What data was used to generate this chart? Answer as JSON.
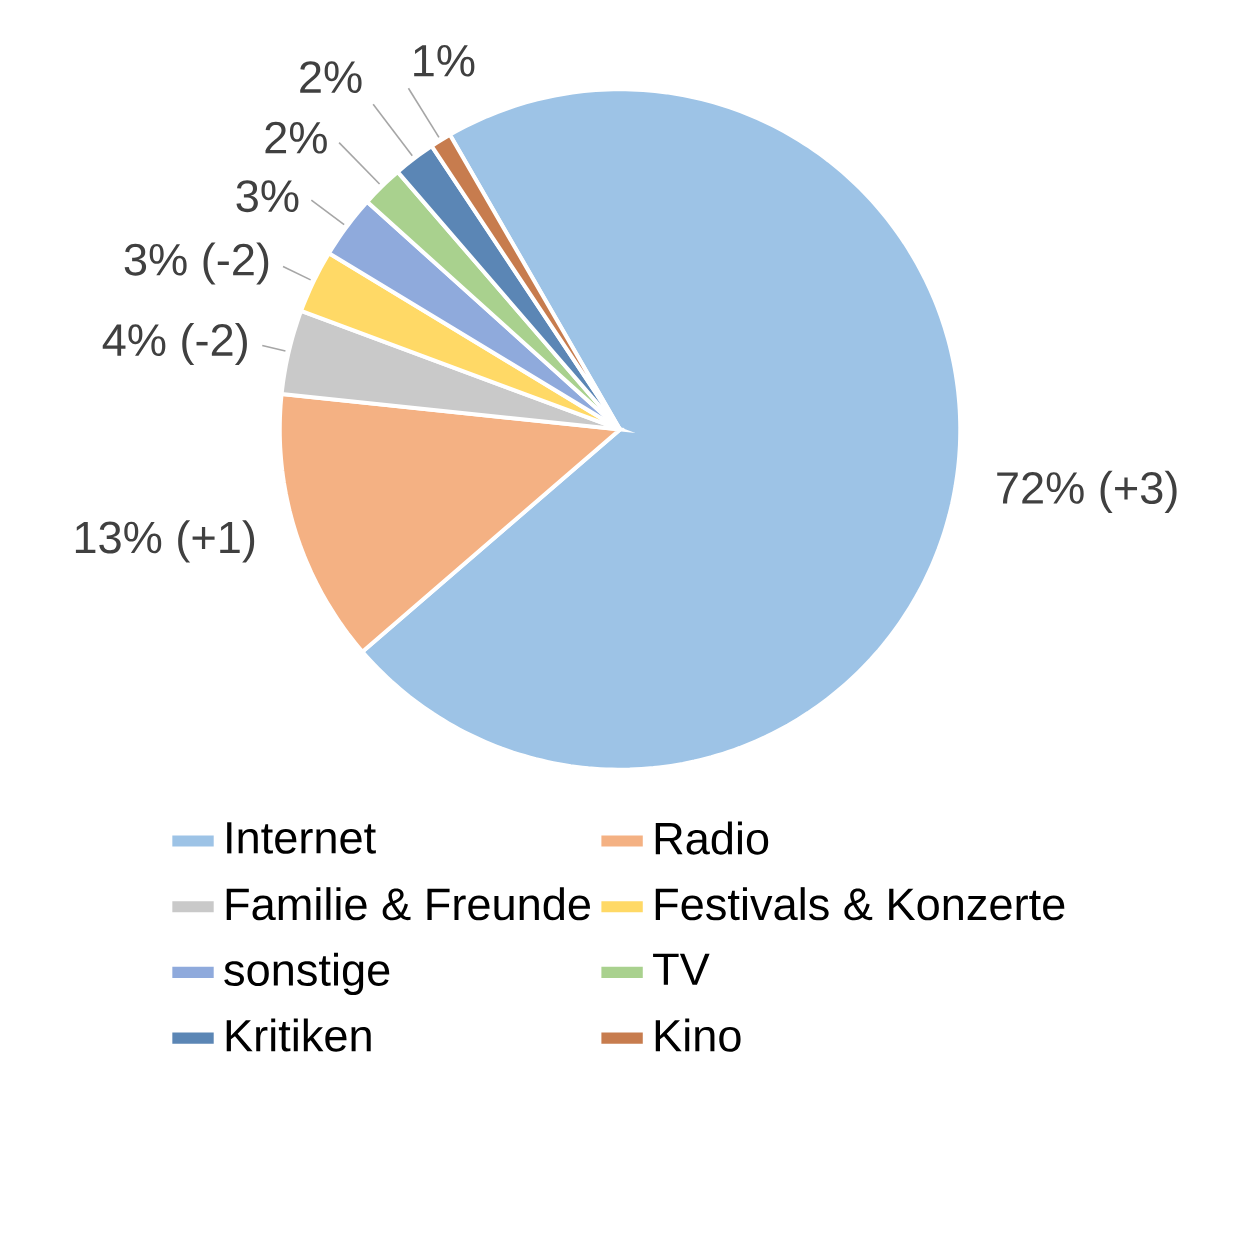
{
  "chart_data": {
    "type": "pie",
    "categories": [
      "Internet",
      "Radio",
      "Familie & Freunde",
      "Festivals & Konzerte",
      "sonstige",
      "TV",
      "Kritiken",
      "Kino"
    ],
    "values": [
      72,
      13,
      4,
      3,
      3,
      2,
      2,
      1
    ],
    "colors": [
      "#9dc3e6",
      "#f4b183",
      "#c9c9c9",
      "#ffd966",
      "#8faadc",
      "#a9d18e",
      "#5b86b5",
      "#c77c4e"
    ],
    "value_labels": [
      "72% (+3)",
      "13% (+1)",
      "4% (-2)",
      "3% (-2)",
      "3%",
      "2%",
      "2%",
      "1%"
    ],
    "legend": "bottom"
  }
}
